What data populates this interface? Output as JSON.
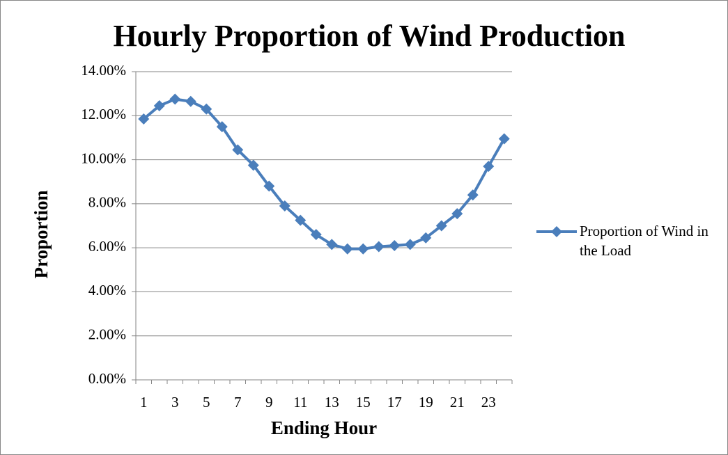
{
  "chart_data": {
    "type": "line",
    "title": "Hourly Proportion of Wind Production",
    "x_label": "Ending Hour",
    "y_label": "Proportion",
    "categories": [
      1,
      null,
      3,
      null,
      5,
      null,
      7,
      null,
      9,
      null,
      11,
      null,
      13,
      null,
      15,
      null,
      17,
      null,
      19,
      null,
      21,
      null,
      23,
      null
    ],
    "series": [
      {
        "name": "Proportion of Wind in the Load",
        "color": "#4a7ebb",
        "values": [
          11.85,
          12.45,
          12.75,
          12.65,
          12.3,
          11.5,
          10.45,
          9.75,
          8.8,
          7.9,
          7.25,
          6.6,
          6.15,
          5.95,
          5.95,
          6.05,
          6.1,
          6.15,
          6.45,
          7.0,
          7.55,
          8.4,
          9.7,
          10.95
        ]
      }
    ],
    "ylim": [
      0,
      14
    ],
    "yticks": [
      {
        "value": 0,
        "label": "0.00%"
      },
      {
        "value": 2,
        "label": "2.00%"
      },
      {
        "value": 4,
        "label": "4.00%"
      },
      {
        "value": 6,
        "label": "6.00%"
      },
      {
        "value": 8,
        "label": "8.00%"
      },
      {
        "value": 10,
        "label": "10.00%"
      },
      {
        "value": 12,
        "label": "12.00%"
      },
      {
        "value": 14,
        "label": "14.00%"
      }
    ],
    "grid": true,
    "legend": "right"
  }
}
